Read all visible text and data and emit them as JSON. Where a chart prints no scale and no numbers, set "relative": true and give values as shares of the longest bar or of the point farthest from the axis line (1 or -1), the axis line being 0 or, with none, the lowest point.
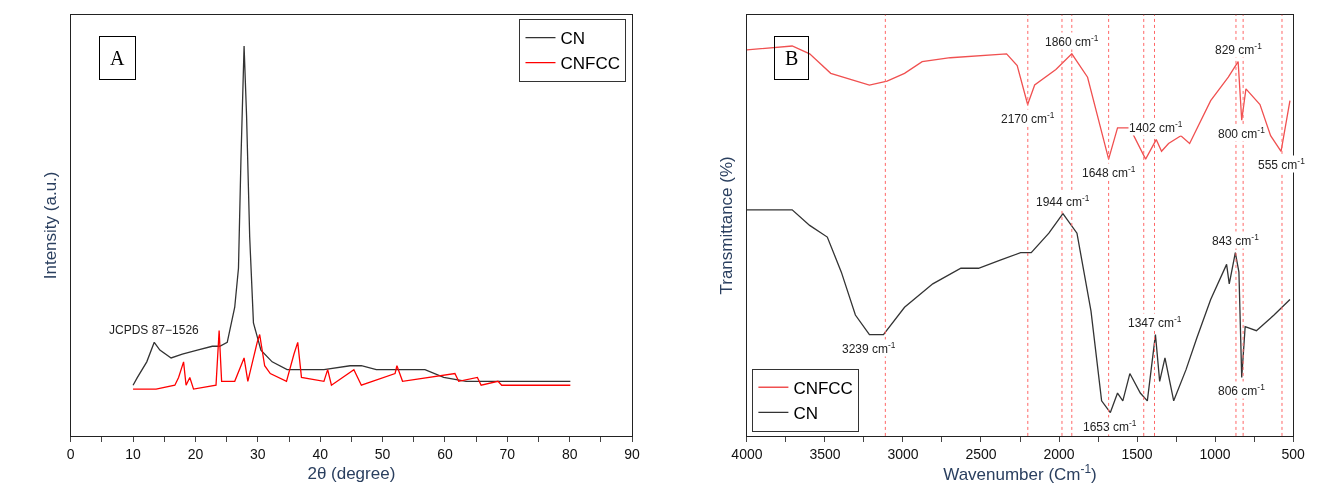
{
  "chart_data": [
    {
      "type": "line",
      "relative": true,
      "xlabel": "2θ (degree)",
      "ylabel": "Intensity (a.u.)",
      "xlim": [
        0,
        90
      ],
      "xticks": [
        0,
        {
          "value": 5,
          "label": null
        },
        10,
        {
          "value": 15,
          "label": null
        },
        20,
        {
          "value": 25,
          "label": null
        },
        30,
        {
          "value": 35,
          "label": null
        },
        40,
        {
          "value": 45,
          "label": null
        },
        50,
        {
          "value": 55,
          "label": null
        },
        60,
        {
          "value": 65,
          "label": null
        },
        70,
        {
          "value": 75,
          "label": null
        },
        80,
        {
          "value": 85,
          "label": null
        },
        90
      ],
      "legend": "top right",
      "tick_labels": "x",
      "annotations": [
        "A",
        {
          "text": "JCPDS 87−1526",
          "x": 13.4,
          "y": 0.24
        }
      ],
      "series": [
        {
          "name": "CN",
          "color": "#333333",
          "x": [
            10,
            10.7,
            12.2,
            13.4,
            14.3,
            16.1,
            17.9,
            20.3,
            22.7,
            23.9,
            25.1,
            26.3,
            26.9,
            27.3,
            27.8,
            28.2,
            28.7,
            29.3,
            30.5,
            32.3,
            34.7,
            37.0,
            40.6,
            44.8,
            46.6,
            49.0,
            52.6,
            56.8,
            59.8,
            63.4,
            67.6,
            73.5,
            80.1
          ],
          "values": [
            0.13,
            0.15,
            0.19,
            0.24,
            0.22,
            0.2,
            0.21,
            0.22,
            0.23,
            0.23,
            0.24,
            0.33,
            0.43,
            0.71,
            1.0,
            0.82,
            0.51,
            0.29,
            0.22,
            0.19,
            0.17,
            0.17,
            0.17,
            0.18,
            0.18,
            0.17,
            0.17,
            0.17,
            0.15,
            0.14,
            0.14,
            0.14,
            0.14
          ]
        },
        {
          "name": "CNFCC",
          "color": "#ff0000",
          "x": [
            10,
            13.7,
            16.7,
            17.3,
            18.1,
            18.5,
            19.1,
            19.7,
            23.3,
            23.8,
            24.2,
            26.3,
            27.8,
            28.4,
            29.9,
            30.3,
            31.1,
            32.0,
            34.6,
            35.8,
            36.4,
            37.0,
            40.6,
            41.2,
            41.8,
            45.4,
            46.6,
            52.0,
            52.3,
            53.2,
            61.6,
            62.2,
            65.2,
            65.8,
            68.5,
            69.1,
            80.1
          ],
          "values": [
            0.12,
            0.12,
            0.13,
            0.15,
            0.19,
            0.13,
            0.15,
            0.12,
            0.13,
            0.27,
            0.14,
            0.14,
            0.2,
            0.14,
            0.24,
            0.26,
            0.18,
            0.16,
            0.14,
            0.21,
            0.24,
            0.15,
            0.14,
            0.17,
            0.13,
            0.17,
            0.13,
            0.16,
            0.18,
            0.14,
            0.16,
            0.14,
            0.15,
            0.13,
            0.14,
            0.13,
            0.13
          ]
        }
      ]
    },
    {
      "type": "line",
      "relative": true,
      "xlabel": "Wavenumber (Cm$^{-1}$)",
      "ylabel": "Transmittance (%)",
      "xlim": [
        4000,
        500
      ],
      "xticks": [
        4000,
        {
          "value": 3750,
          "label": null
        },
        3500,
        {
          "value": 3250,
          "label": null
        },
        3000,
        {
          "value": 2750,
          "label": null
        },
        2500,
        {
          "value": 2250,
          "label": null
        },
        2000,
        {
          "value": 1750,
          "label": null
        },
        1500,
        {
          "value": 1250,
          "label": null
        },
        1000,
        {
          "value": 750,
          "label": null
        },
        500
      ],
      "legend": "bottom left",
      "tick_labels": "x",
      "annotations": [
        "B",
        {
          "text": "1860 cm$^{-1}$",
          "x": 1918,
          "y": 0.98
        },
        {
          "text": "829 cm$^{-1}$",
          "x": 852,
          "y": 0.96
        },
        {
          "text": "2170 cm$^{-1}$",
          "x": 2201,
          "y": 0.85
        },
        {
          "text": "1402 cm$^{-1}$",
          "x": 1377,
          "y": 0.76
        },
        {
          "text": "800 cm$^{-1}$",
          "x": 829,
          "y": 0.81
        },
        {
          "text": "1648 cm$^{-1}$",
          "x": 1682,
          "y": 0.71
        },
        {
          "text": "555 cm$^{-1}$",
          "x": 577,
          "y": 0.73
        },
        {
          "text": "1944 cm$^{-1}$",
          "x": 1975,
          "y": 0.57
        },
        {
          "text": "843 cm$^{-1}$",
          "x": 870,
          "y": 0.47
        },
        {
          "text": "1347 cm$^{-1}$",
          "x": 1382,
          "y": 0.26
        },
        {
          "text": "3239 cm$^{-1}$",
          "x": 3215,
          "y": 0.26
        },
        {
          "text": "806 cm$^{-1}$",
          "x": 829,
          "y": 0.15
        },
        {
          "text": "1653 cm$^{-1}$",
          "x": 1671,
          "y": 0.06
        }
      ],
      "ref_lines": [
        {
          "axis": "x",
          "value": 2200,
          "color": "#ff6666",
          "line_style": "dotted"
        },
        {
          "axis": "x",
          "value": 1918,
          "color": "#ff6666",
          "line_style": "dotted"
        },
        {
          "axis": "x",
          "value": 1682,
          "color": "#ff6666",
          "line_style": "dotted"
        },
        {
          "axis": "x",
          "value": 1457,
          "color": "#ff6666",
          "line_style": "dotted"
        },
        {
          "axis": "x",
          "value": 866,
          "color": "#ff6666",
          "line_style": "dotted"
        },
        {
          "axis": "x",
          "value": 571,
          "color": "#ff6666",
          "line_style": "dotted"
        },
        {
          "axis": "x",
          "value": 3113,
          "color": "#ff6666",
          "line_style": "dotted"
        },
        {
          "axis": "x",
          "value": 1981,
          "color": "#ff6666",
          "line_style": "dotted"
        },
        {
          "axis": "x",
          "value": 1388,
          "color": "#ff6666",
          "line_style": "dotted"
        },
        {
          "axis": "x",
          "value": 820,
          "color": "#ff6666",
          "line_style": "dotted"
        }
      ],
      "series": [
        {
          "name": "CNFCC",
          "color": "#f05050",
          "x": [
            4000,
            3710,
            3598,
            3463,
            3215,
            3102,
            2990,
            2877,
            2697,
            2336,
            2268,
            2201,
            2156,
            2020,
            1918,
            1817,
            1682,
            1625,
            1546,
            1445,
            1377,
            1343,
            1298,
            1219,
            1163,
            1028,
            915,
            852,
            829,
            802,
            712,
            644,
            577,
            520
          ],
          "values": [
            0.99,
            1.0,
            0.98,
            0.93,
            0.9,
            0.91,
            0.93,
            0.96,
            0.97,
            0.98,
            0.95,
            0.85,
            0.9,
            0.94,
            0.98,
            0.92,
            0.71,
            0.79,
            0.79,
            0.71,
            0.76,
            0.73,
            0.75,
            0.77,
            0.75,
            0.86,
            0.92,
            0.96,
            0.81,
            0.89,
            0.85,
            0.77,
            0.73,
            0.86
          ]
        },
        {
          "name": "CN",
          "color": "#333333",
          "x": [
            4000,
            3891,
            3710,
            3598,
            3485,
            3395,
            3305,
            3215,
            3125,
            2990,
            2809,
            2629,
            2516,
            2381,
            2246,
            2178,
            2065,
            1975,
            1885,
            1795,
            1727,
            1671,
            1625,
            1591,
            1546,
            1479,
            1434,
            1382,
            1355,
            1321,
            1265,
            1186,
            1118,
            1028,
            926,
            909,
            870,
            847,
            829,
            807,
            735,
            622,
            520
          ],
          "values": [
            0.58,
            0.58,
            0.58,
            0.54,
            0.51,
            0.42,
            0.31,
            0.26,
            0.26,
            0.33,
            0.39,
            0.43,
            0.43,
            0.45,
            0.47,
            0.47,
            0.52,
            0.57,
            0.52,
            0.32,
            0.09,
            0.06,
            0.11,
            0.09,
            0.16,
            0.11,
            0.09,
            0.26,
            0.14,
            0.2,
            0.09,
            0.17,
            0.25,
            0.35,
            0.44,
            0.39,
            0.47,
            0.42,
            0.15,
            0.28,
            0.27,
            0.31,
            0.35
          ]
        }
      ]
    }
  ]
}
